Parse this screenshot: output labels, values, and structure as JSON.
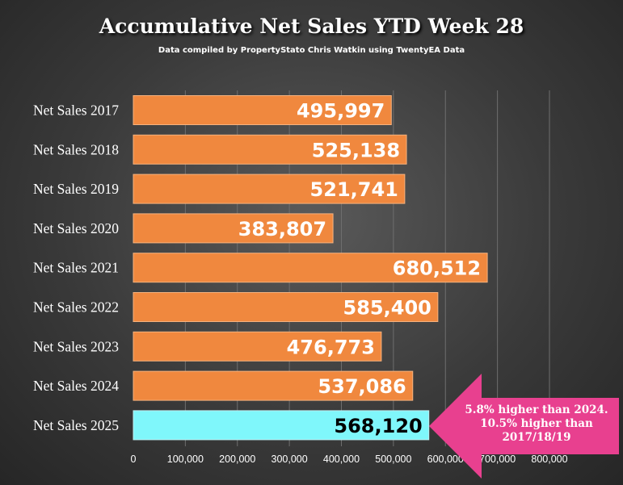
{
  "chart_data": {
    "type": "bar",
    "orientation": "horizontal",
    "title": "Accumulative Net Sales YTD Week 28",
    "subtitle": "Data compiled by PropertyStato Chris Watkin using TwentyEA Data",
    "categories": [
      "Net Sales 2017",
      "Net Sales 2018",
      "Net Sales 2019",
      "Net Sales 2020",
      "Net Sales 2021",
      "Net Sales 2022",
      "Net Sales 2023",
      "Net Sales 2024",
      "Net Sales 2025"
    ],
    "values": [
      495997,
      525138,
      521741,
      383807,
      680512,
      585400,
      476773,
      537086,
      568120
    ],
    "data_labels": [
      "495,997",
      "525,138",
      "521,741",
      "383,807",
      "680,512",
      "585,400",
      "476,773",
      "537,086",
      "568,120"
    ],
    "x_ticks": [
      0,
      100000,
      200000,
      300000,
      400000,
      500000,
      600000,
      700000,
      800000
    ],
    "x_tick_labels": [
      "0",
      "100,000",
      "200,000",
      "300,000",
      "400,000",
      "500,000",
      "600,000",
      "700,000",
      "800,000"
    ],
    "xlim": [
      0,
      800000
    ],
    "grid": true,
    "colors": {
      "bar": "#f0883e",
      "bar_highlight": "#7ff7fb",
      "label_default": "#ffffff",
      "label_highlight": "#000000",
      "grid": "#6e6e6e",
      "callout": "#e8408f"
    },
    "highlight_index": 8,
    "annotation": {
      "text": "5.8% higher than 2024.\n10.5% higher than\n2017/18/19",
      "shape": "left-pointing arrow"
    }
  }
}
